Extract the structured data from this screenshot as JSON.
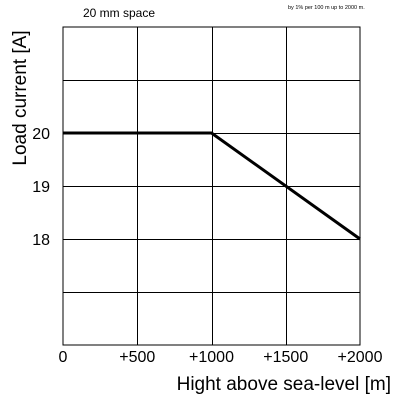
{
  "header": {
    "spacing_text": "20 mm space",
    "derating_note": "by 1% per 100 m up to 2000 m."
  },
  "chart_data": {
    "type": "line",
    "xlabel": "Hight above sea-level [m]",
    "ylabel": "Load current [A]",
    "xlim": [
      0,
      2000
    ],
    "ylim": [
      16,
      22
    ],
    "x_ticks": [
      {
        "value": 0,
        "label": "0"
      },
      {
        "value": 500,
        "label": "+500"
      },
      {
        "value": 1000,
        "label": "+1000"
      },
      {
        "value": 1500,
        "label": "+1500"
      },
      {
        "value": 2000,
        "label": "+2000"
      }
    ],
    "y_ticks": [
      {
        "value": 20,
        "label": "20"
      },
      {
        "value": 19,
        "label": "19"
      },
      {
        "value": 18,
        "label": "18"
      }
    ],
    "y_gridlines": [
      17,
      18,
      19,
      20,
      21
    ],
    "grid": true,
    "series": [
      {
        "x": [
          0,
          1000,
          2000
        ],
        "y": [
          20,
          20,
          18
        ]
      }
    ]
  }
}
